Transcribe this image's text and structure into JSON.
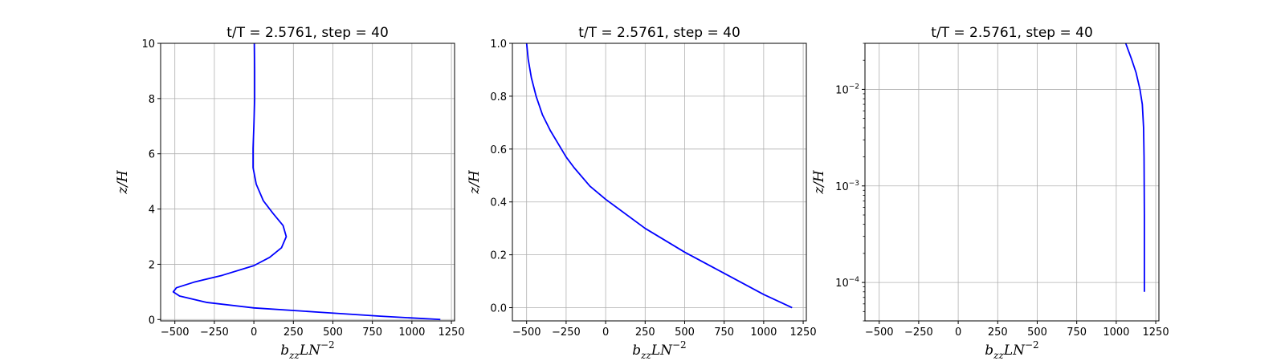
{
  "chart_data": [
    {
      "type": "line",
      "title": "t/T = 2.5761, step = 40",
      "xlabel_parts": [
        "b",
        "zz",
        "LN",
        "−2"
      ],
      "ylabel": "z/H",
      "xlim": [
        -590,
        1270
      ],
      "ylim": [
        -0.05,
        10
      ],
      "yscale": "linear",
      "xticks": [
        -500,
        -250,
        0,
        250,
        500,
        750,
        1000,
        1250
      ],
      "xtick_labels": [
        "−500",
        "−250",
        "0",
        "250",
        "500",
        "750",
        "1000",
        "1250"
      ],
      "yticks": [
        0,
        2,
        4,
        6,
        8,
        10
      ],
      "ytick_labels": [
        "0",
        "2",
        "4",
        "6",
        "8",
        "10"
      ],
      "grid": true,
      "series": [
        {
          "color": "#0000ff",
          "points": [
            [
              1180,
              0
            ],
            [
              800,
              0.12
            ],
            [
              400,
              0.27
            ],
            [
              0,
              0.42
            ],
            [
              -300,
              0.62
            ],
            [
              -470,
              0.85
            ],
            [
              -510,
              1.0
            ],
            [
              -490,
              1.15
            ],
            [
              -380,
              1.35
            ],
            [
              -200,
              1.6
            ],
            [
              0,
              1.95
            ],
            [
              100,
              2.25
            ],
            [
              175,
              2.6
            ],
            [
              205,
              3.0
            ],
            [
              185,
              3.4
            ],
            [
              120,
              3.85
            ],
            [
              60,
              4.3
            ],
            [
              15,
              4.9
            ],
            [
              -5,
              5.5
            ],
            [
              -5,
              6.2
            ],
            [
              0,
              7.0
            ],
            [
              5,
              8.0
            ],
            [
              5,
              9.0
            ],
            [
              3,
              10
            ]
          ]
        }
      ]
    },
    {
      "type": "line",
      "title": "t/T = 2.5761, step = 40",
      "xlabel_parts": [
        "b",
        "zz",
        "LN",
        "−2"
      ],
      "ylabel": "z/H",
      "xlim": [
        -590,
        1270
      ],
      "ylim": [
        -0.05,
        1.0
      ],
      "yscale": "linear",
      "xticks": [
        -500,
        -250,
        0,
        250,
        500,
        750,
        1000,
        1250
      ],
      "xtick_labels": [
        "−500",
        "−250",
        "0",
        "250",
        "500",
        "750",
        "1000",
        "1250"
      ],
      "yticks": [
        0.0,
        0.2,
        0.4,
        0.6,
        0.8,
        1.0
      ],
      "ytick_labels": [
        "0.0",
        "0.2",
        "0.4",
        "0.6",
        "0.8",
        "1.0"
      ],
      "grid": true,
      "series": [
        {
          "color": "#0000ff",
          "points": [
            [
              1180,
              0
            ],
            [
              1000,
              0.05
            ],
            [
              750,
              0.13
            ],
            [
              500,
              0.21
            ],
            [
              250,
              0.3
            ],
            [
              0,
              0.41
            ],
            [
              -100,
              0.46
            ],
            [
              -200,
              0.53
            ],
            [
              -250,
              0.57
            ],
            [
              -300,
              0.62
            ],
            [
              -350,
              0.67
            ],
            [
              -400,
              0.73
            ],
            [
              -440,
              0.8
            ],
            [
              -470,
              0.87
            ],
            [
              -490,
              0.94
            ],
            [
              -500,
              1.0
            ]
          ]
        }
      ]
    },
    {
      "type": "line",
      "title": "t/T = 2.5761, step = 40",
      "xlabel_parts": [
        "b",
        "zz",
        "LN",
        "−2"
      ],
      "ylabel": "z/H",
      "xlim": [
        -590,
        1270
      ],
      "ylim": [
        4e-05,
        0.03
      ],
      "yscale": "log",
      "xticks": [
        -500,
        -250,
        0,
        250,
        500,
        750,
        1000,
        1250
      ],
      "xtick_labels": [
        "−500",
        "−250",
        "0",
        "250",
        "500",
        "750",
        "1000",
        "1250"
      ],
      "yticks": [
        0.0001,
        0.001,
        0.01
      ],
      "ytick_bases": [
        "10",
        "10",
        "10"
      ],
      "ytick_exps": [
        "−4",
        "−3",
        "−2"
      ],
      "grid": true,
      "series": [
        {
          "color": "#0000ff",
          "points": [
            [
              1178,
              8e-05
            ],
            [
              1178,
              0.0002
            ],
            [
              1178,
              0.0005
            ],
            [
              1177,
              0.001
            ],
            [
              1176,
              0.002
            ],
            [
              1173,
              0.004
            ],
            [
              1165,
              0.007
            ],
            [
              1150,
              0.01
            ],
            [
              1125,
              0.015
            ],
            [
              1095,
              0.021
            ],
            [
              1060,
              0.03
            ]
          ]
        }
      ]
    }
  ]
}
